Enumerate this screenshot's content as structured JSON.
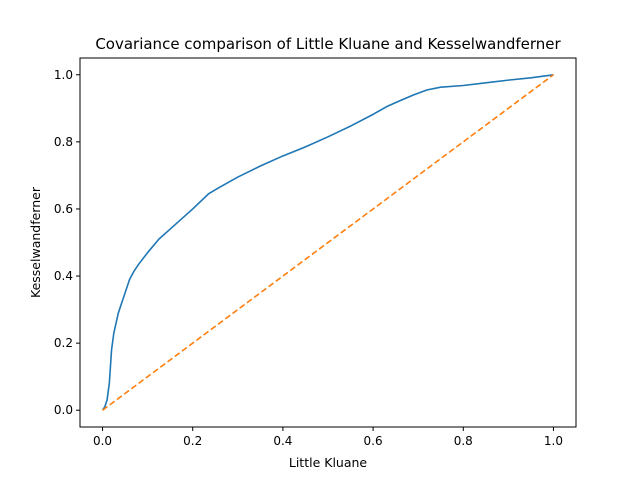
{
  "chart_data": {
    "type": "line",
    "title": "Covariance comparison of Little Kluane and Kesselwandferner",
    "xlabel": "Little Kluane",
    "ylabel": "Kesselwandferner",
    "xlim": [
      -0.05,
      1.05
    ],
    "ylim": [
      -0.05,
      1.05
    ],
    "xticks": [
      0.0,
      0.2,
      0.4,
      0.6,
      0.8,
      1.0
    ],
    "xtick_labels": [
      "0.0",
      "0.2",
      "0.4",
      "0.6",
      "0.8",
      "1.0"
    ],
    "yticks": [
      0.0,
      0.2,
      0.4,
      0.6,
      0.8,
      1.0
    ],
    "ytick_labels": [
      "0.0",
      "0.2",
      "0.4",
      "0.6",
      "0.8",
      "1.0"
    ],
    "grid": false,
    "series": [
      {
        "color": "#1f77b4",
        "style": "solid",
        "x": [
          0.0,
          0.005,
          0.01,
          0.015,
          0.02,
          0.025,
          0.03,
          0.035,
          0.04,
          0.05,
          0.06,
          0.07,
          0.08,
          0.1,
          0.125,
          0.15,
          0.2,
          0.235,
          0.26,
          0.3,
          0.35,
          0.4,
          0.45,
          0.5,
          0.55,
          0.6,
          0.63,
          0.66,
          0.69,
          0.72,
          0.75,
          0.8,
          0.85,
          0.9,
          0.95,
          1.0
        ],
        "y": [
          0.0,
          0.01,
          0.03,
          0.08,
          0.18,
          0.23,
          0.26,
          0.29,
          0.31,
          0.35,
          0.39,
          0.415,
          0.435,
          0.47,
          0.51,
          0.54,
          0.6,
          0.645,
          0.665,
          0.695,
          0.728,
          0.758,
          0.785,
          0.815,
          0.847,
          0.882,
          0.905,
          0.923,
          0.94,
          0.955,
          0.963,
          0.968,
          0.976,
          0.984,
          0.991,
          1.0
        ]
      },
      {
        "color": "#ff7f0e",
        "style": "dashed",
        "x": [
          0.0,
          1.0
        ],
        "y": [
          0.0,
          1.0
        ]
      }
    ]
  }
}
